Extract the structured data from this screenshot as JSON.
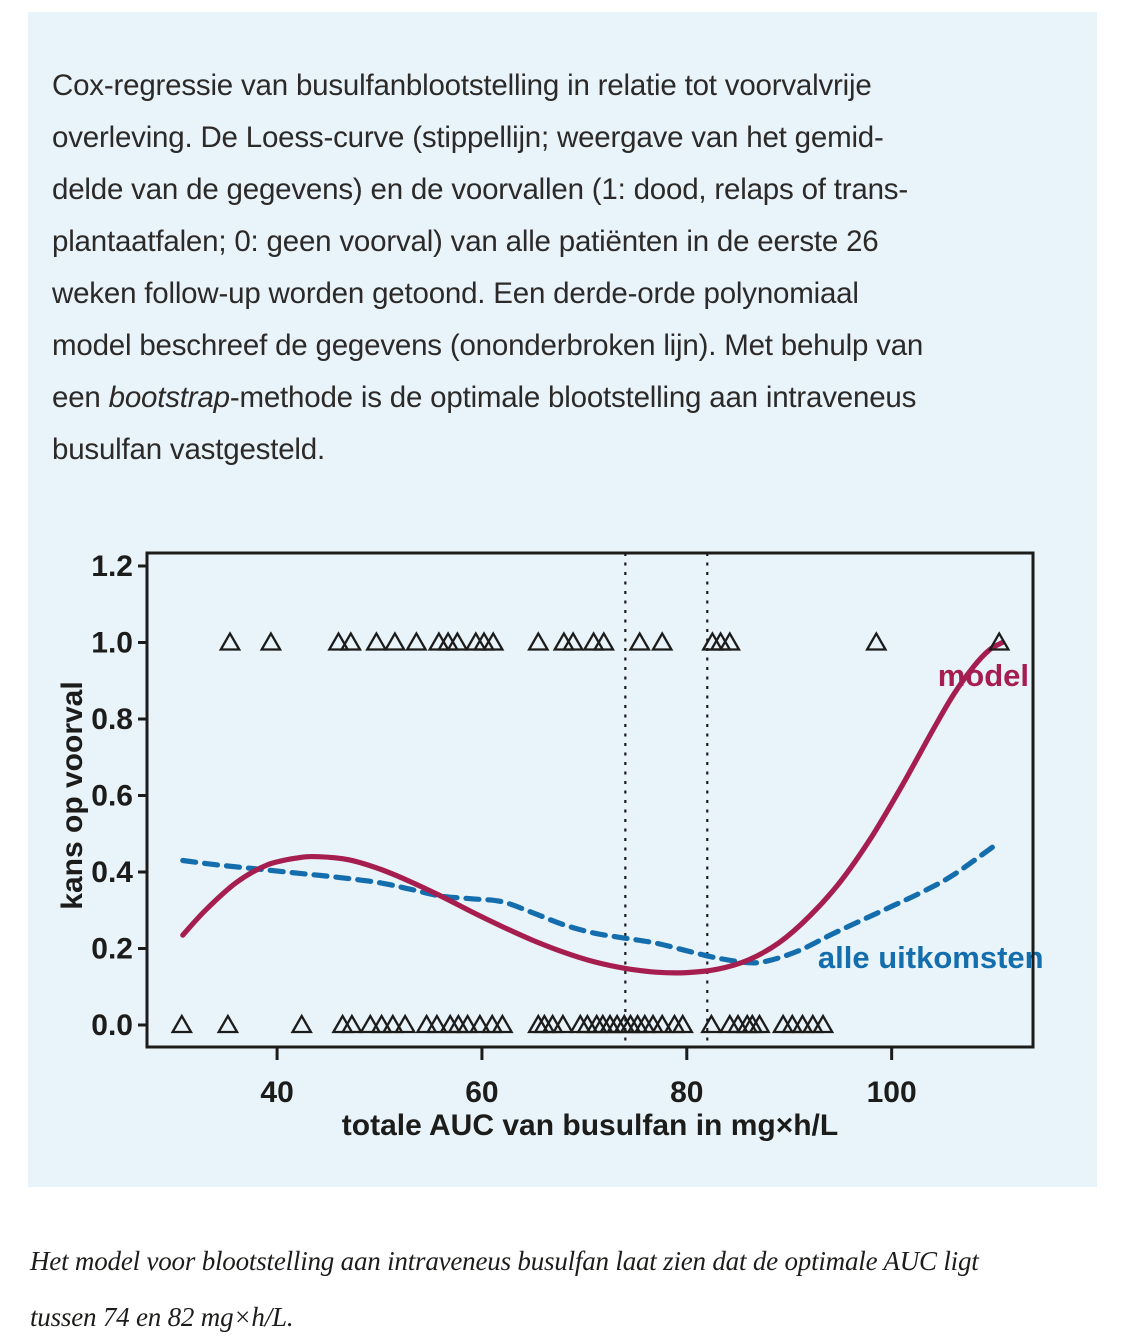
{
  "figure": {
    "description_lines": [
      [
        {
          "t": "Cox-regressie van busulfanblootstelling in relatie tot voorvalvrije",
          "i": false
        }
      ],
      [
        {
          "t": "overleving. De Loess-curve (stippellijn; weergave van het gemid-",
          "i": false
        }
      ],
      [
        {
          "t": "delde van de gegevens) en de voorvallen (1: dood, relaps of trans-",
          "i": false
        }
      ],
      [
        {
          "t": "plantaatfalen; 0: geen voorval) van alle patiënten in de eerste 26",
          "i": false
        }
      ],
      [
        {
          "t": "weken follow-up worden getoond. Een derde-orde polynomiaal",
          "i": false
        }
      ],
      [
        {
          "t": "model beschreef de gegevens (ononderbroken lijn). Met behulp van",
          "i": false
        }
      ],
      [
        {
          "t": "een ",
          "i": false
        },
        {
          "t": "bootstrap",
          "i": true
        },
        {
          "t": "-methode is de optimale blootstelling aan intraveneus",
          "i": false
        }
      ],
      [
        {
          "t": "busulfan vastgesteld.",
          "i": false
        }
      ]
    ],
    "caption_lines": [
      "Het model voor blootstelling aan intraveneus busulfan laat zien dat de optimale AUC ligt",
      "tussen 74 en 82 mg×h/L."
    ]
  },
  "colors": {
    "panel_bg": "#e9f3fa",
    "text": "#2b2a28",
    "axis": "#1c1c1a",
    "model": "#a61e4f",
    "loess": "#146ead"
  },
  "chart_data": {
    "type": "line",
    "title": "",
    "xlabel": "totale AUC van busulfan in mg×h/L",
    "ylabel": "kans op voorval",
    "xlim": [
      27.3,
      113.8
    ],
    "ylim": [
      -0.0575,
      1.234
    ],
    "grid": false,
    "x_ticks": [
      {
        "v": 40,
        "label": "40"
      },
      {
        "v": 60,
        "label": "60"
      },
      {
        "v": 80,
        "label": "80"
      },
      {
        "v": 100,
        "label": "100"
      }
    ],
    "y_ticks": [
      {
        "v": 0,
        "label": "0.0"
      },
      {
        "v": 0.2,
        "label": "0.2"
      },
      {
        "v": 0.4,
        "label": "0.4"
      },
      {
        "v": 0.6,
        "label": "0.6"
      },
      {
        "v": 0.8,
        "label": "0.8"
      },
      {
        "v": 1.0,
        "label": "1.0"
      },
      {
        "v": 1.2,
        "label": "1.2"
      }
    ],
    "reference_lines_x": [
      74,
      82
    ],
    "series": [
      {
        "name": "alle uitkomsten",
        "style": "dashed",
        "color": "#146ead",
        "label": {
          "text": "alle uitkomsten",
          "x": 92.8,
          "y": 0.149
        },
        "points": [
          [
            30.8,
            0.43
          ],
          [
            34,
            0.419
          ],
          [
            38,
            0.408
          ],
          [
            42,
            0.397
          ],
          [
            46,
            0.386
          ],
          [
            50,
            0.372
          ],
          [
            53,
            0.355
          ],
          [
            56,
            0.337
          ],
          [
            59,
            0.33
          ],
          [
            62,
            0.322
          ],
          [
            65,
            0.293
          ],
          [
            68,
            0.262
          ],
          [
            71,
            0.24
          ],
          [
            74,
            0.227
          ],
          [
            77,
            0.214
          ],
          [
            80,
            0.194
          ],
          [
            83,
            0.175
          ],
          [
            86,
            0.163
          ],
          [
            88,
            0.168
          ],
          [
            91,
            0.195
          ],
          [
            94,
            0.235
          ],
          [
            97,
            0.273
          ],
          [
            100,
            0.31
          ],
          [
            103,
            0.348
          ],
          [
            106,
            0.392
          ],
          [
            110,
            0.468
          ]
        ]
      },
      {
        "name": "model",
        "style": "solid",
        "color": "#a61e4f",
        "label": {
          "text": "model",
          "x": 104.5,
          "y": 0.886
        },
        "points": [
          [
            30.8,
            0.235
          ],
          [
            33,
            0.3
          ],
          [
            36,
            0.372
          ],
          [
            39,
            0.418
          ],
          [
            42,
            0.437
          ],
          [
            44,
            0.44
          ],
          [
            47,
            0.432
          ],
          [
            50,
            0.408
          ],
          [
            53,
            0.375
          ],
          [
            56,
            0.337
          ],
          [
            59,
            0.296
          ],
          [
            62,
            0.257
          ],
          [
            65,
            0.221
          ],
          [
            68,
            0.19
          ],
          [
            71,
            0.165
          ],
          [
            74,
            0.148
          ],
          [
            77,
            0.138
          ],
          [
            80,
            0.137
          ],
          [
            83,
            0.146
          ],
          [
            86,
            0.17
          ],
          [
            89,
            0.215
          ],
          [
            92,
            0.285
          ],
          [
            95,
            0.375
          ],
          [
            98,
            0.49
          ],
          [
            101,
            0.625
          ],
          [
            104,
            0.77
          ],
          [
            106,
            0.862
          ],
          [
            108,
            0.937
          ],
          [
            109.5,
            0.98
          ],
          [
            110.8,
            1.0
          ]
        ]
      }
    ],
    "events": {
      "marker": "open-triangle",
      "y1_x": [
        35.4,
        39.4,
        46.0,
        47.2,
        49.7,
        51.5,
        53.6,
        55.8,
        56.7,
        57.6,
        59.4,
        60.2,
        61.1,
        65.5,
        68.0,
        68.9,
        70.9,
        71.9,
        75.4,
        77.6,
        82.5,
        83.3,
        84.2,
        98.5,
        110.5
      ],
      "y0_x": [
        30.7,
        35.2,
        42.4,
        46.4,
        47.3,
        49.1,
        50.2,
        51.3,
        52.5,
        54.6,
        55.6,
        56.9,
        57.7,
        58.6,
        59.8,
        61.0,
        62.0,
        65.5,
        66.1,
        66.9,
        67.9,
        69.6,
        70.3,
        71.2,
        71.8,
        72.5,
        73.2,
        73.9,
        74.5,
        75.2,
        75.9,
        76.7,
        77.6,
        78.8,
        79.6,
        82.4,
        84.2,
        85.0,
        85.9,
        86.4,
        87.1,
        89.4,
        90.3,
        91.3,
        92.3,
        93.3
      ]
    },
    "legend_position": "inline-labels"
  }
}
